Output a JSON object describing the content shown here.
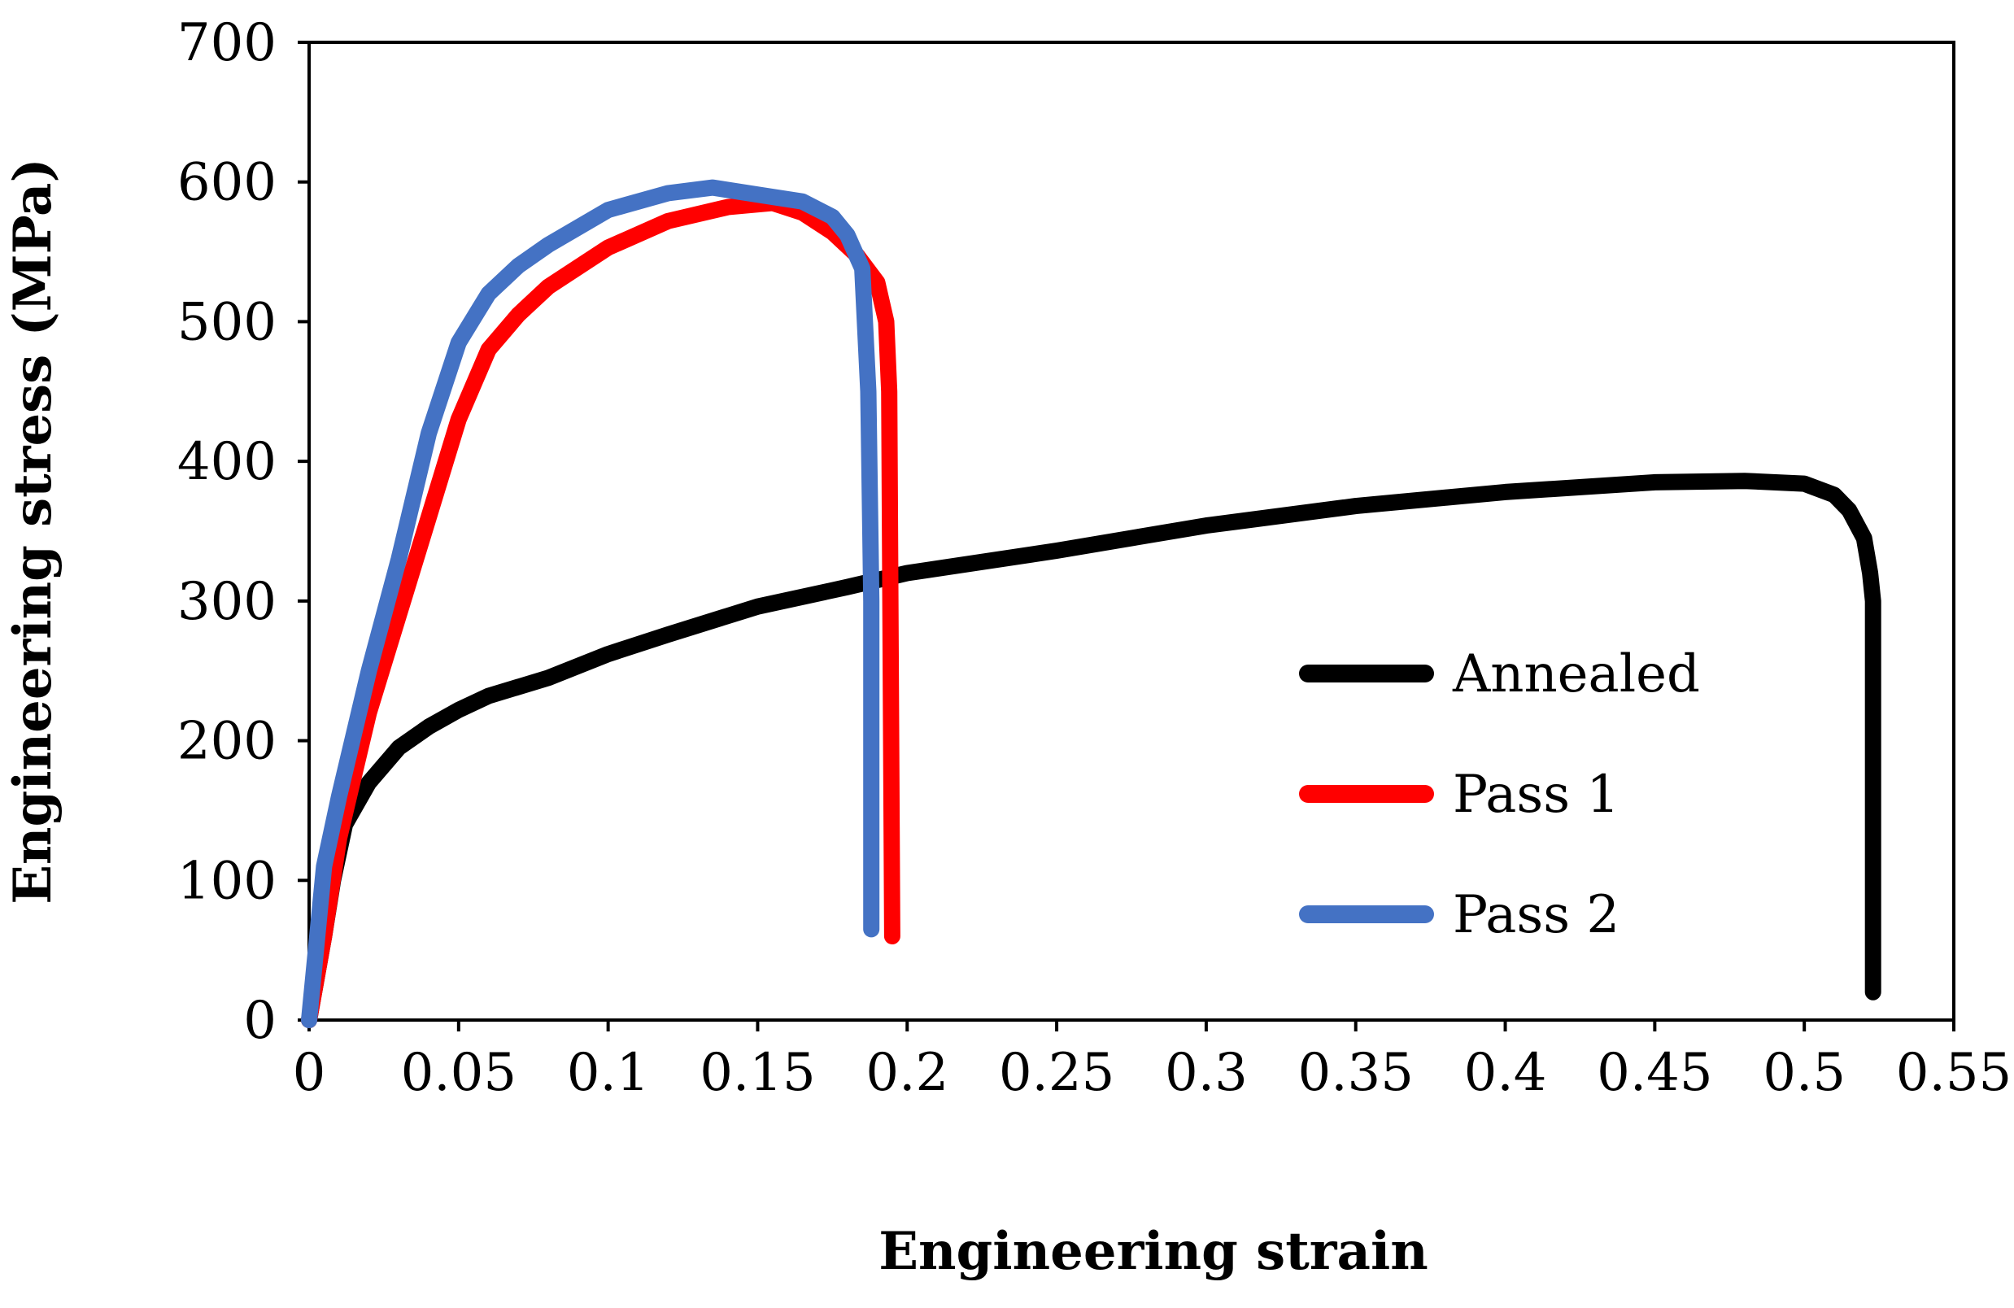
{
  "chart_data": {
    "type": "line",
    "title": "",
    "xlabel": "Engineering strain",
    "ylabel": "Engineering stress (MPa)",
    "xlim": [
      0,
      0.55
    ],
    "ylim": [
      0,
      700
    ],
    "x_ticks": [
      "0",
      "0.05",
      "0.1",
      "0.15",
      "0.2",
      "0.25",
      "0.3",
      "0.35",
      "0.4",
      "0.45",
      "0.5",
      "0.55"
    ],
    "y_ticks": [
      "0",
      "100",
      "200",
      "300",
      "400",
      "500",
      "600",
      "700"
    ],
    "grid": false,
    "legend_position": "right",
    "series": [
      {
        "name": "Annealed",
        "color": "#000000",
        "points": [
          [
            0,
            0
          ],
          [
            0.005,
            60
          ],
          [
            0.008,
            100
          ],
          [
            0.012,
            140
          ],
          [
            0.02,
            170
          ],
          [
            0.03,
            195
          ],
          [
            0.04,
            210
          ],
          [
            0.05,
            222
          ],
          [
            0.06,
            232
          ],
          [
            0.08,
            245
          ],
          [
            0.1,
            262
          ],
          [
            0.12,
            276
          ],
          [
            0.15,
            296
          ],
          [
            0.18,
            310
          ],
          [
            0.2,
            320
          ],
          [
            0.25,
            336
          ],
          [
            0.3,
            354
          ],
          [
            0.35,
            368
          ],
          [
            0.4,
            378
          ],
          [
            0.45,
            385
          ],
          [
            0.48,
            386
          ],
          [
            0.5,
            384
          ],
          [
            0.51,
            376
          ],
          [
            0.515,
            365
          ],
          [
            0.52,
            345
          ],
          [
            0.522,
            320
          ],
          [
            0.523,
            300
          ],
          [
            0.523,
            20
          ]
        ]
      },
      {
        "name": "Pass 1",
        "color": "#ff0000",
        "points": [
          [
            0,
            0
          ],
          [
            0.005,
            60
          ],
          [
            0.01,
            130
          ],
          [
            0.02,
            220
          ],
          [
            0.03,
            290
          ],
          [
            0.04,
            360
          ],
          [
            0.05,
            430
          ],
          [
            0.06,
            480
          ],
          [
            0.07,
            505
          ],
          [
            0.08,
            525
          ],
          [
            0.1,
            553
          ],
          [
            0.12,
            572
          ],
          [
            0.14,
            582
          ],
          [
            0.155,
            585
          ],
          [
            0.165,
            578
          ],
          [
            0.175,
            564
          ],
          [
            0.183,
            548
          ],
          [
            0.19,
            528
          ],
          [
            0.193,
            500
          ],
          [
            0.194,
            450
          ],
          [
            0.195,
            60
          ]
        ]
      },
      {
        "name": "Pass 2",
        "color": "#4472c4",
        "points": [
          [
            0,
            0
          ],
          [
            0.005,
            110
          ],
          [
            0.01,
            160
          ],
          [
            0.02,
            250
          ],
          [
            0.03,
            330
          ],
          [
            0.04,
            420
          ],
          [
            0.05,
            485
          ],
          [
            0.06,
            520
          ],
          [
            0.07,
            540
          ],
          [
            0.08,
            555
          ],
          [
            0.1,
            580
          ],
          [
            0.12,
            592
          ],
          [
            0.135,
            596
          ],
          [
            0.15,
            591
          ],
          [
            0.165,
            586
          ],
          [
            0.175,
            575
          ],
          [
            0.18,
            562
          ],
          [
            0.185,
            538
          ],
          [
            0.187,
            450
          ],
          [
            0.188,
            300
          ],
          [
            0.188,
            65
          ]
        ]
      }
    ]
  }
}
